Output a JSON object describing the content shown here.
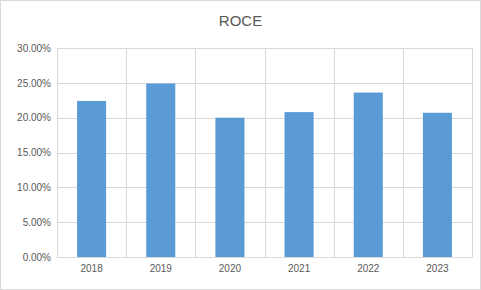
{
  "chart_data": {
    "type": "bar",
    "title": "ROCE",
    "categories": [
      "2018",
      "2019",
      "2020",
      "2021",
      "2022",
      "2023"
    ],
    "values": [
      22.4,
      24.9,
      20.0,
      20.8,
      23.6,
      20.7
    ],
    "color": "#5b9bd5",
    "ylim": [
      0,
      30
    ],
    "yticks": [
      {
        "value": 0,
        "label": "0.00%"
      },
      {
        "value": 5,
        "label": "5.00%"
      },
      {
        "value": 10,
        "label": "10.00%"
      },
      {
        "value": 15,
        "label": "15.00%"
      },
      {
        "value": 20,
        "label": "20.00%"
      },
      {
        "value": 25,
        "label": "25.00%"
      },
      {
        "value": 30,
        "label": "30.00%"
      }
    ],
    "grid": true
  }
}
